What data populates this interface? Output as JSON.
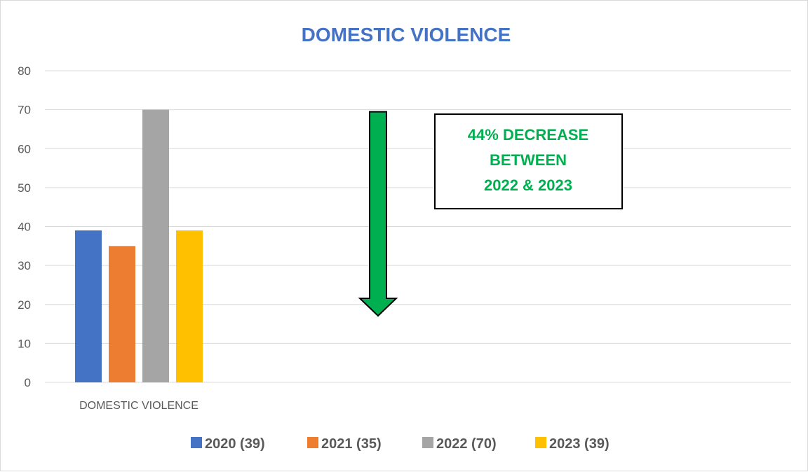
{
  "chart_data": {
    "type": "bar",
    "title": "DOMESTIC VIOLENCE",
    "categories": [
      "DOMESTIC VIOLENCE"
    ],
    "series": [
      {
        "name": "2020 (39)",
        "values": [
          39
        ],
        "color": "#4472c4"
      },
      {
        "name": "2021 (35)",
        "values": [
          35
        ],
        "color": "#ed7d31"
      },
      {
        "name": "2022 (70)",
        "values": [
          70
        ],
        "color": "#a5a5a5"
      },
      {
        "name": "2023 (39)",
        "values": [
          39
        ],
        "color": "#ffc000"
      }
    ],
    "ylim": [
      0,
      80
    ],
    "yticks": [
      "0",
      "10",
      "20",
      "30",
      "40",
      "50",
      "60",
      "70",
      "80"
    ],
    "grid": true,
    "legend_position": "bottom",
    "annotations": {
      "callout_lines": [
        "44% DECREASE",
        "BETWEEN",
        "2022 & 2023"
      ],
      "callout_color": "#00b050",
      "arrow_direction": "down",
      "arrow_color": "#00b050"
    }
  }
}
